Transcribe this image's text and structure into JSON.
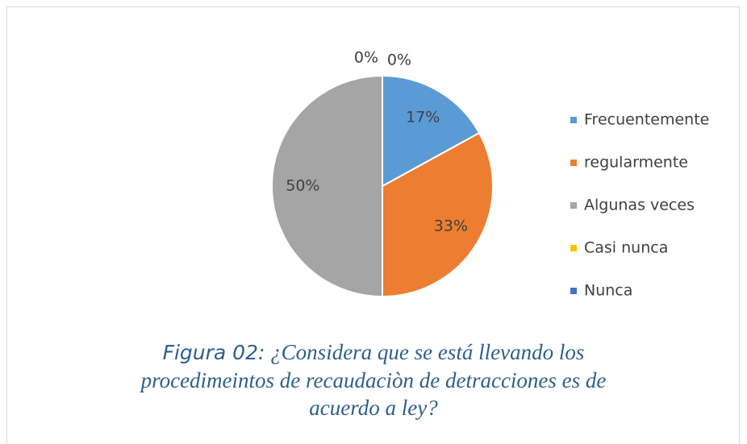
{
  "chart_data": {
    "type": "pie",
    "categories": [
      "Frecuentemente",
      "regularmente",
      "Algunas veces",
      "Casi nunca",
      "Nunca"
    ],
    "values": [
      17,
      33,
      50,
      0,
      0
    ],
    "value_labels": [
      "17%",
      "33%",
      "50%",
      "0%",
      "0%"
    ],
    "colors": [
      "#5b9bd5",
      "#ed7d31",
      "#a5a5a5",
      "#ffc000",
      "#4472c4"
    ],
    "legend": "right",
    "caption": {
      "label": "Figura 02:",
      "text": "¿Considera que se está llevando los procedimeintos de recaudaciòn de detracciones es de acuerdo a ley?"
    }
  }
}
